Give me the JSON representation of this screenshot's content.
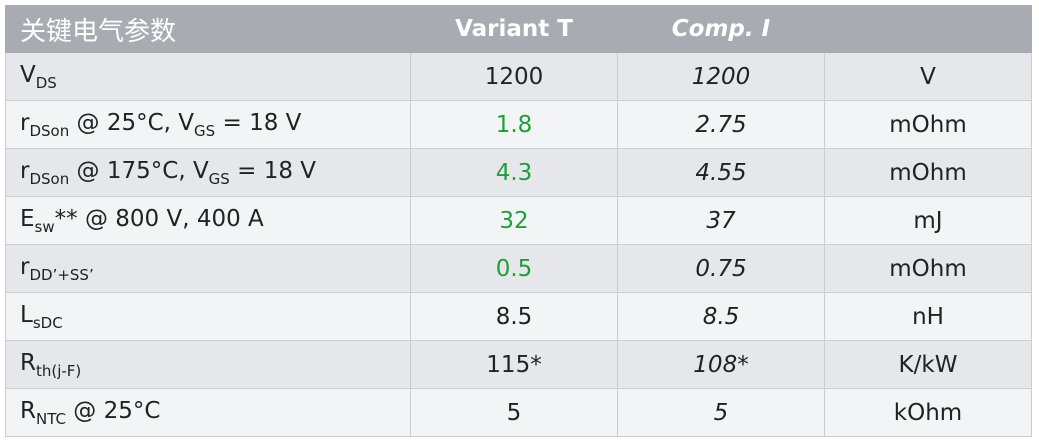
{
  "table": {
    "header": [
      "关键电气参数",
      "Variant T",
      "Comp. I",
      ""
    ],
    "rows": [
      {
        "parameter": [
          {
            "main": "V"
          },
          {
            "sub": "DS"
          }
        ],
        "variant": {
          "text": "1200"
        },
        "comp": "1200",
        "unit": "V"
      },
      {
        "parameter": [
          {
            "main": "r"
          },
          {
            "sub": "DSon"
          },
          {
            "main": " @ 25°C, V"
          },
          {
            "sub": "GS"
          },
          {
            "main": " = 18 V"
          }
        ],
        "variant": {
          "text": "1.8",
          "color": "#1f9e3a"
        },
        "comp": "2.75",
        "unit": "mOhm"
      },
      {
        "parameter": [
          {
            "main": "r"
          },
          {
            "sub": "DSon"
          },
          {
            "main": " @ 175°C, V"
          },
          {
            "sub": "GS"
          },
          {
            "main": " = 18 V"
          }
        ],
        "variant": {
          "text": "4.3",
          "color": "#1f9e3a"
        },
        "comp": "4.55",
        "unit": "mOhm"
      },
      {
        "parameter": [
          {
            "main": "E"
          },
          {
            "sub": "sw"
          },
          {
            "main": "** @ 800 V, 400 A"
          }
        ],
        "variant": {
          "text": "32",
          "color": "#1f9e3a"
        },
        "comp": "37",
        "unit": "mJ"
      },
      {
        "parameter": [
          {
            "main": "r"
          },
          {
            "sub": "DD’+SS’"
          }
        ],
        "variant": {
          "text": "0.5",
          "color": "#1f9e3a"
        },
        "comp": "0.75",
        "unit": "mOhm"
      },
      {
        "parameter": [
          {
            "main": "L"
          },
          {
            "sub": "sDC"
          }
        ],
        "variant": {
          "text": "8.5"
        },
        "comp": "8.5",
        "unit": "nH"
      },
      {
        "parameter": [
          {
            "main": "R"
          },
          {
            "sub": "th(j-F)"
          }
        ],
        "variant": {
          "text": "115*"
        },
        "comp": "108*",
        "unit": "K/kW"
      },
      {
        "parameter": [
          {
            "main": "R"
          },
          {
            "sub": "NTC"
          },
          {
            "main": " @ 25°C"
          }
        ],
        "variant": {
          "text": "5"
        },
        "comp": "5",
        "unit": "kOhm"
      }
    ]
  }
}
